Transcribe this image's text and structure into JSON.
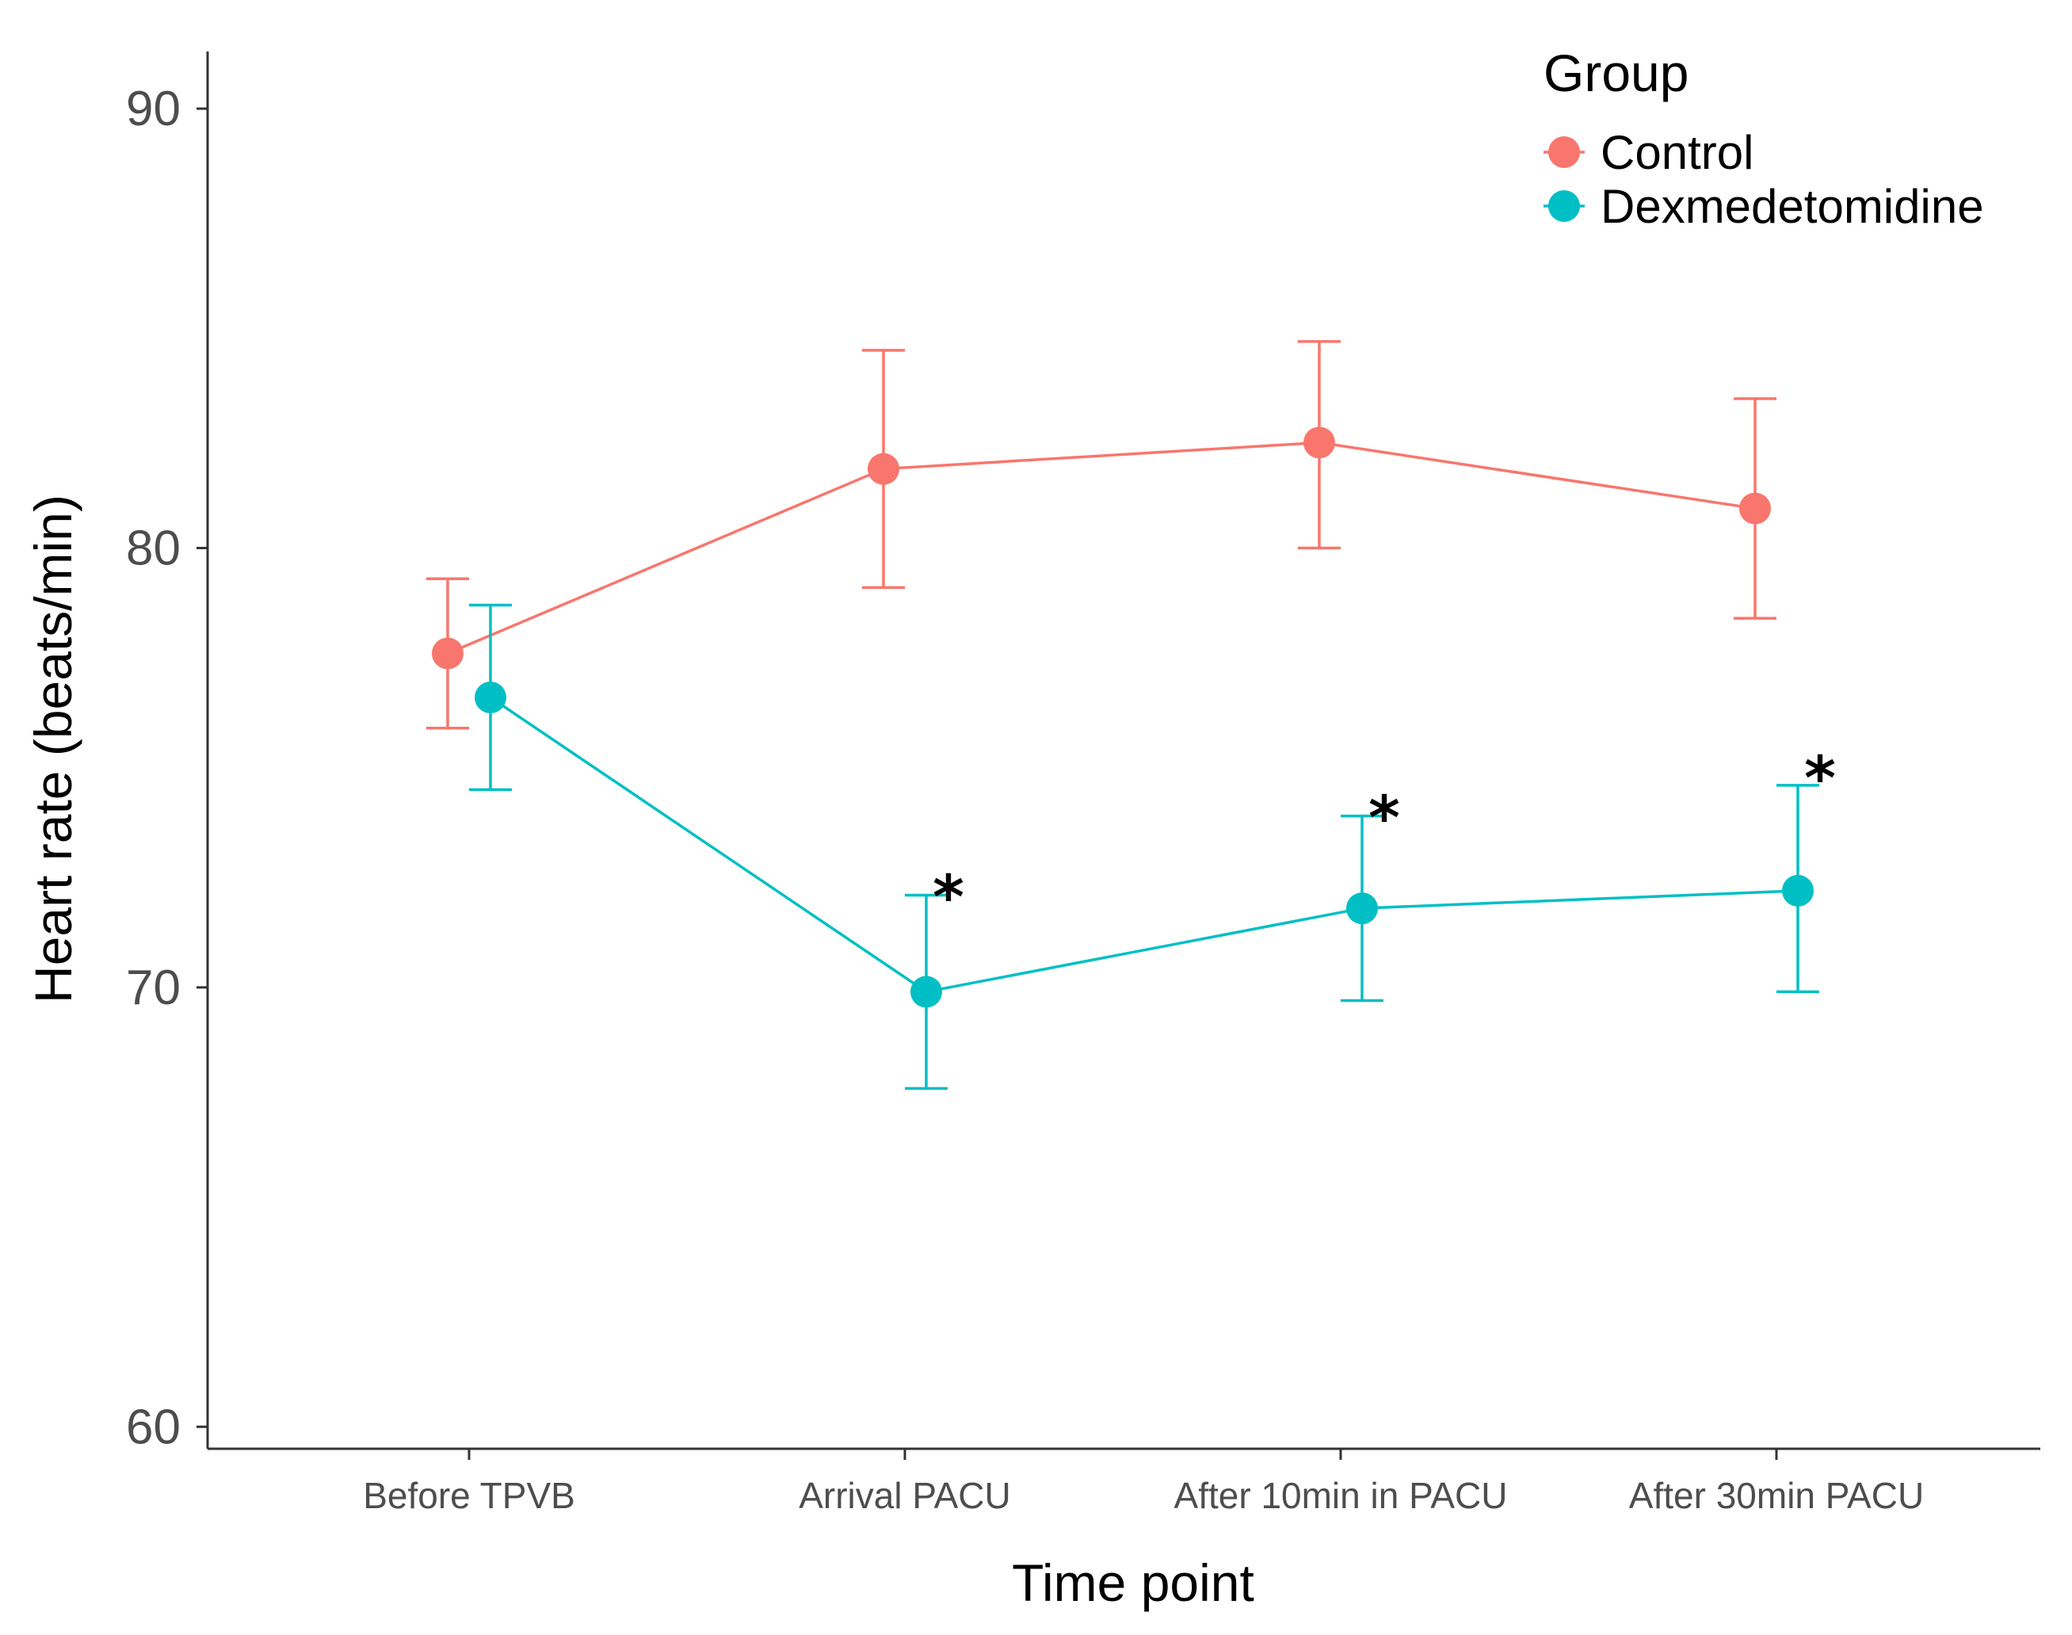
{
  "chart_data": {
    "type": "line",
    "title": "",
    "xlabel": "Time point",
    "ylabel": "Heart rate (beats/min)",
    "categories": [
      "Before TPVB",
      "Arrival PACU",
      "After 10min in PACU",
      "After 30min PACU"
    ],
    "ylim": [
      59.5,
      91.3
    ],
    "yticks": [
      60,
      70,
      80,
      90
    ],
    "grid": false,
    "legend": {
      "title": "Group",
      "position": "top-right"
    },
    "series": [
      {
        "name": "Control",
        "color": "#F8766D",
        "values": [
          77.6,
          81.8,
          82.4,
          80.9
        ],
        "error_low": [
          75.9,
          79.1,
          80.0,
          78.4
        ],
        "error_high": [
          79.3,
          84.5,
          84.7,
          83.4
        ]
      },
      {
        "name": "Dexmedetomidine",
        "color": "#00BFC4",
        "values": [
          76.6,
          69.9,
          71.8,
          72.2
        ],
        "error_low": [
          74.5,
          67.7,
          69.7,
          69.9
        ],
        "error_high": [
          78.7,
          72.1,
          73.9,
          74.6
        ]
      }
    ],
    "annotations": [
      {
        "text": "*",
        "category": "Arrival PACU",
        "y": 72.4
      },
      {
        "text": "*",
        "category": "After 10min in PACU",
        "y": 74.2
      },
      {
        "text": "*",
        "category": "After 30min PACU",
        "y": 75.1
      }
    ]
  }
}
